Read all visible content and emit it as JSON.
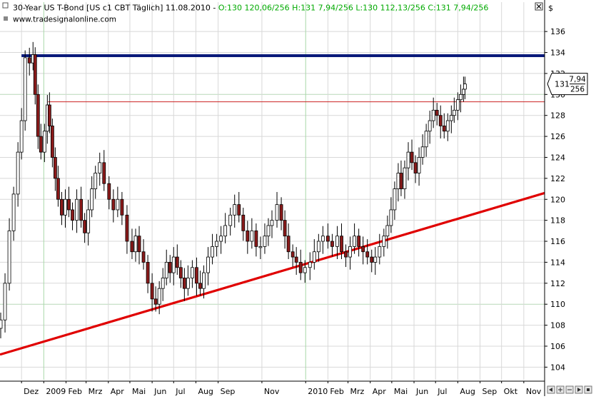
{
  "header": {
    "title": "30-Year US T-Bond [US c1 CBT  Täglich] 11.08.2010 - ",
    "quote": "O:130 120,06/256 H:131 7,94/256 L:130 112,13/256 C:131 7,94/256",
    "source": "www.tradesignalonline.com"
  },
  "currency": "$",
  "price_tag": {
    "whole": "131",
    "num": "7,94",
    "den": "256"
  },
  "close_icon": "close-icon",
  "colors": {
    "quote": "#00aa00",
    "candle_up": "#ffffff",
    "candle_down": "#8b1a1a",
    "resistance": "#0a1a7a",
    "support": "#e00000",
    "thin_line": "#cc2222",
    "grid": "#d8d8d8",
    "vgrid_year": "#a8d8a8",
    "hgrid_strong": "#b8d8b8"
  },
  "chart_data": {
    "type": "candlestick",
    "title": "30-Year US T-Bond [US c1 CBT  Täglich] 11.08.2010",
    "xaxis": {
      "months": [
        "Dez",
        "2009",
        "Feb",
        "Mrz",
        "Apr",
        "Mai",
        "Jun",
        "Jul",
        "Aug",
        "Sep",
        "Nov",
        "2010",
        "Feb",
        "Mrz",
        "Apr",
        "Mai",
        "Jun",
        "Jul",
        "Aug",
        "Sep",
        "Okt",
        "Nov"
      ],
      "dates": [
        "2008-12-01",
        "2009-01-01",
        "2009-02-01",
        "2009-03-01",
        "2009-04-01",
        "2009-05-01",
        "2009-06-01",
        "2009-07-01",
        "2009-08-01",
        "2009-09-01",
        "2009-11-01",
        "2010-01-01",
        "2010-02-01",
        "2010-03-01",
        "2010-04-01",
        "2010-05-01",
        "2010-06-01",
        "2010-07-01",
        "2010-08-01",
        "2010-09-01",
        "2010-10-01",
        "2010-11-01"
      ],
      "range": [
        "2008-11-01",
        "2010-11-30"
      ]
    },
    "yaxis": {
      "ticks": [
        104,
        106,
        108,
        110,
        112,
        114,
        116,
        118,
        120,
        122,
        124,
        126,
        128,
        130,
        132,
        134,
        136
      ],
      "range": [
        102.8,
        138.8
      ],
      "position": "right"
    },
    "highlighted_price": 131,
    "price_series": [
      [
        "2008-11-02",
        108.5
      ],
      [
        "2008-11-08",
        112
      ],
      [
        "2008-11-14",
        117
      ],
      [
        "2008-11-20",
        120.5
      ],
      [
        "2008-11-26",
        124.5
      ],
      [
        "2008-12-01",
        127.5
      ],
      [
        "2008-12-06",
        133.5
      ],
      [
        "2008-12-12",
        133
      ],
      [
        "2008-12-17",
        133.8
      ],
      [
        "2008-12-20",
        130
      ],
      [
        "2008-12-24",
        126
      ],
      [
        "2008-12-28",
        124.5
      ],
      [
        "2009-01-02",
        126.5
      ],
      [
        "2009-01-06",
        129
      ],
      [
        "2009-01-09",
        127
      ],
      [
        "2009-01-13",
        124
      ],
      [
        "2009-01-17",
        122
      ],
      [
        "2009-01-21",
        120
      ],
      [
        "2009-01-26",
        118.5
      ],
      [
        "2009-01-31",
        120
      ],
      [
        "2009-02-05",
        119
      ],
      [
        "2009-02-10",
        118
      ],
      [
        "2009-02-16",
        120
      ],
      [
        "2009-02-22",
        118
      ],
      [
        "2009-02-27",
        116.8
      ],
      [
        "2009-03-04",
        119
      ],
      [
        "2009-03-09",
        121
      ],
      [
        "2009-03-14",
        122.5
      ],
      [
        "2009-03-20",
        123.5
      ],
      [
        "2009-03-26",
        121.5
      ],
      [
        "2009-04-02",
        120
      ],
      [
        "2009-04-08",
        119
      ],
      [
        "2009-04-14",
        120
      ],
      [
        "2009-04-20",
        118.5
      ],
      [
        "2009-04-27",
        116
      ],
      [
        "2009-05-04",
        115
      ],
      [
        "2009-05-09",
        116.5
      ],
      [
        "2009-05-14",
        115
      ],
      [
        "2009-05-20",
        114
      ],
      [
        "2009-05-26",
        112
      ],
      [
        "2009-06-01",
        110.5
      ],
      [
        "2009-06-06",
        110
      ],
      [
        "2009-06-11",
        111.5
      ],
      [
        "2009-06-16",
        112.5
      ],
      [
        "2009-06-21",
        114
      ],
      [
        "2009-06-26",
        113
      ],
      [
        "2009-07-01",
        114.5
      ],
      [
        "2009-07-06",
        113.5
      ],
      [
        "2009-07-11",
        112.5
      ],
      [
        "2009-07-16",
        111.5
      ],
      [
        "2009-07-21",
        112.5
      ],
      [
        "2009-07-27",
        113.5
      ],
      [
        "2009-08-02",
        112
      ],
      [
        "2009-08-07",
        111.5
      ],
      [
        "2009-08-12",
        113
      ],
      [
        "2009-08-18",
        114.5
      ],
      [
        "2009-08-24",
        115.5
      ],
      [
        "2009-08-30",
        116
      ],
      [
        "2009-09-05",
        116.5
      ],
      [
        "2009-09-11",
        117.5
      ],
      [
        "2009-09-18",
        118.5
      ],
      [
        "2009-09-24",
        119.5
      ],
      [
        "2009-09-30",
        118.5
      ],
      [
        "2009-10-06",
        117
      ],
      [
        "2009-10-12",
        116
      ],
      [
        "2009-10-18",
        117
      ],
      [
        "2009-10-24",
        115.5
      ],
      [
        "2009-10-30",
        115.5
      ],
      [
        "2009-11-05",
        116.5
      ],
      [
        "2009-11-10",
        117.5
      ],
      [
        "2009-11-15",
        118
      ],
      [
        "2009-11-22",
        119.5
      ],
      [
        "2009-11-28",
        118
      ],
      [
        "2009-12-03",
        116.5
      ],
      [
        "2009-12-08",
        115
      ],
      [
        "2009-12-14",
        114.5
      ],
      [
        "2009-12-19",
        114
      ],
      [
        "2009-12-25",
        113
      ],
      [
        "2009-12-31",
        113.5
      ],
      [
        "2010-01-07",
        114
      ],
      [
        "2010-01-13",
        115
      ],
      [
        "2010-01-19",
        116
      ],
      [
        "2010-01-25",
        116.5
      ],
      [
        "2010-02-01",
        116
      ],
      [
        "2010-02-07",
        115.5
      ],
      [
        "2010-02-14",
        116.5
      ],
      [
        "2010-02-20",
        115
      ],
      [
        "2010-02-26",
        114.5
      ],
      [
        "2010-03-04",
        115.5
      ],
      [
        "2010-03-10",
        116.5
      ],
      [
        "2010-03-16",
        115.5
      ],
      [
        "2010-03-22",
        115
      ],
      [
        "2010-03-28",
        114.5
      ],
      [
        "2010-04-03",
        114
      ],
      [
        "2010-04-08",
        114.5
      ],
      [
        "2010-04-14",
        115.5
      ],
      [
        "2010-04-20",
        116.5
      ],
      [
        "2010-04-25",
        117.5
      ],
      [
        "2010-04-30",
        119
      ],
      [
        "2010-05-05",
        121
      ],
      [
        "2010-05-10",
        122.5
      ],
      [
        "2010-05-14",
        121
      ],
      [
        "2010-05-19",
        123
      ],
      [
        "2010-05-24",
        124.5
      ],
      [
        "2010-05-29",
        123.5
      ],
      [
        "2010-06-03",
        122.5
      ],
      [
        "2010-06-08",
        124
      ],
      [
        "2010-06-13",
        125
      ],
      [
        "2010-06-18",
        126.5
      ],
      [
        "2010-06-23",
        127.5
      ],
      [
        "2010-06-28",
        128.5
      ],
      [
        "2010-07-03",
        128
      ],
      [
        "2010-07-08",
        127
      ],
      [
        "2010-07-13",
        126.5
      ],
      [
        "2010-07-18",
        127.5
      ],
      [
        "2010-07-23",
        128
      ],
      [
        "2010-07-27",
        128.5
      ],
      [
        "2010-08-01",
        129.5
      ],
      [
        "2010-08-05",
        130
      ],
      [
        "2010-08-09",
        130.5
      ],
      [
        "2010-08-11",
        131
      ]
    ],
    "lines": [
      {
        "name": "resistance",
        "type": "horizontal",
        "y": 133.7,
        "from": "2008-12-01",
        "to": "2010-11-30",
        "color": "#0a1a7a"
      },
      {
        "name": "thin-horizontal",
        "type": "horizontal",
        "y": 129.3,
        "from": "2009-01-07",
        "to": "2010-11-30",
        "color": "#cc2222"
      },
      {
        "name": "support",
        "type": "trend",
        "from": [
          "2008-11-01",
          105.2
        ],
        "to": [
          "2010-11-30",
          120.6
        ],
        "color": "#e00000"
      }
    ]
  }
}
